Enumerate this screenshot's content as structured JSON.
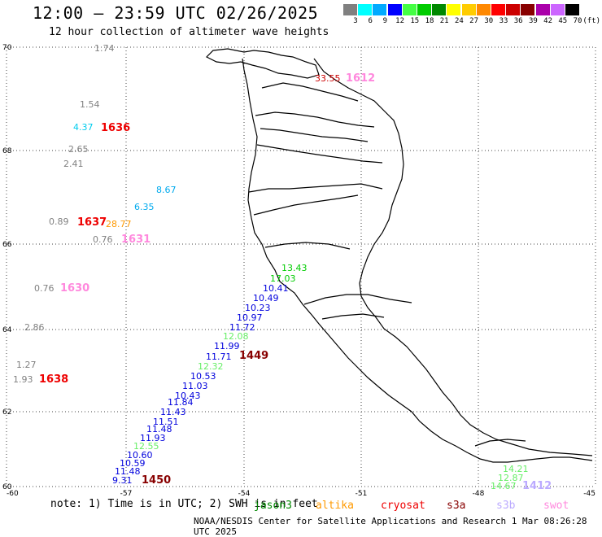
{
  "header": {
    "title": "12:00 — 23:59 UTC 02/26/2025",
    "subtitle": "12 hour collection of altimeter wave heights"
  },
  "color_scale": {
    "unit": "(ft)",
    "bins": [
      {
        "label": "3",
        "color": "#808080"
      },
      {
        "label": "6",
        "color": "#00ffff"
      },
      {
        "label": "9",
        "color": "#00aaff"
      },
      {
        "label": "12",
        "color": "#0000ff"
      },
      {
        "label": "15",
        "color": "#44ff44"
      },
      {
        "label": "18",
        "color": "#00cc00"
      },
      {
        "label": "21",
        "color": "#008800"
      },
      {
        "label": "24",
        "color": "#ffff00"
      },
      {
        "label": "27",
        "color": "#ffcc00"
      },
      {
        "label": "30",
        "color": "#ff8800"
      },
      {
        "label": "33",
        "color": "#ff0000"
      },
      {
        "label": "36",
        "color": "#cc0000"
      },
      {
        "label": "39",
        "color": "#880000"
      },
      {
        "label": "42",
        "color": "#aa00aa"
      },
      {
        "label": "45",
        "color": "#cc66ff"
      },
      {
        "label": "70",
        "color": "#000000"
      }
    ]
  },
  "axes": {
    "lat_labels": [
      "70",
      "68",
      "66",
      "64",
      "62",
      "60"
    ],
    "lon_labels": [
      "-60",
      "-57",
      "-54",
      "-51",
      "-48",
      "-45"
    ]
  },
  "observations": [
    {
      "text": "1.74",
      "color": "#808080"
    },
    {
      "text": "1.54",
      "color": "#808080"
    },
    {
      "text": "4.37",
      "color": "#00ccee"
    },
    {
      "text": "1636",
      "color": "#ee0000"
    },
    {
      "text": "2.65",
      "color": "#808080"
    },
    {
      "text": "2.41",
      "color": "#808080"
    },
    {
      "text": "8.67",
      "color": "#00aaee"
    },
    {
      "text": "6.35",
      "color": "#00aaee"
    },
    {
      "text": "0.89",
      "color": "#808080"
    },
    {
      "text": "1637",
      "color": "#ee0000"
    },
    {
      "text": "28.77",
      "color": "#ff9900"
    },
    {
      "text": "0.76",
      "color": "#808080"
    },
    {
      "text": "1631",
      "color": "#ff88dd"
    },
    {
      "text": "0.76",
      "color": "#808080"
    },
    {
      "text": "1630",
      "color": "#ff88dd"
    },
    {
      "text": "2.86",
      "color": "#808080"
    },
    {
      "text": "1.27",
      "color": "#808080"
    },
    {
      "text": "1.93",
      "color": "#808080"
    },
    {
      "text": "1638",
      "color": "#ee0000"
    },
    {
      "text": "33.55",
      "color": "#cc0000"
    },
    {
      "text": "1612",
      "color": "#ff88dd"
    },
    {
      "text": "13.43",
      "color": "#00cc00"
    },
    {
      "text": "17.03",
      "color": "#00cc00"
    },
    {
      "text": "10.41",
      "color": "#0000dd"
    },
    {
      "text": "10.49",
      "color": "#0000dd"
    },
    {
      "text": "10.23",
      "color": "#0000dd"
    },
    {
      "text": "10.97",
      "color": "#0000dd"
    },
    {
      "text": "11.72",
      "color": "#0000dd"
    },
    {
      "text": "12.08",
      "color": "#66ee66"
    },
    {
      "text": "11.99",
      "color": "#0000dd"
    },
    {
      "text": "1449",
      "color": "#880000"
    },
    {
      "text": "11.71",
      "color": "#0000dd"
    },
    {
      "text": "12.32",
      "color": "#66ee66"
    },
    {
      "text": "10.53",
      "color": "#0000dd"
    },
    {
      "text": "11.03",
      "color": "#0000dd"
    },
    {
      "text": "10.43",
      "color": "#0000dd"
    },
    {
      "text": "11.84",
      "color": "#0000dd"
    },
    {
      "text": "11.43",
      "color": "#0000dd"
    },
    {
      "text": "11.51",
      "color": "#0000dd"
    },
    {
      "text": "11.48",
      "color": "#0000dd"
    },
    {
      "text": "11.93",
      "color": "#0000dd"
    },
    {
      "text": "12.55",
      "color": "#66ee66"
    },
    {
      "text": "10.60",
      "color": "#0000dd"
    },
    {
      "text": "10.59",
      "color": "#0000dd"
    },
    {
      "text": "11.48",
      "color": "#0000dd"
    },
    {
      "text": "9.31",
      "color": "#0000dd"
    },
    {
      "text": "1450",
      "color": "#880000"
    },
    {
      "text": "14.21",
      "color": "#66ee66"
    },
    {
      "text": "12.87",
      "color": "#66ee66"
    },
    {
      "text": "14.67",
      "color": "#66ee66"
    },
    {
      "text": "1412",
      "color": "#bbaaff"
    }
  ],
  "footer": {
    "note": "note: 1) Time is in UTC; 2) SWH is in feet",
    "satellites": [
      {
        "name": "jason3",
        "color": "#008800"
      },
      {
        "name": "altika",
        "color": "#ff9900"
      },
      {
        "name": "cryosat",
        "color": "#ee0000"
      },
      {
        "name": "s3a",
        "color": "#880000"
      },
      {
        "name": "s3b",
        "color": "#bbaaff"
      },
      {
        "name": "swot",
        "color": "#ff88dd"
      }
    ],
    "credit": "NOAA/NESDIS Center for Satellite Applications and Research    1 Mar 08:26:28 UTC 2025"
  }
}
